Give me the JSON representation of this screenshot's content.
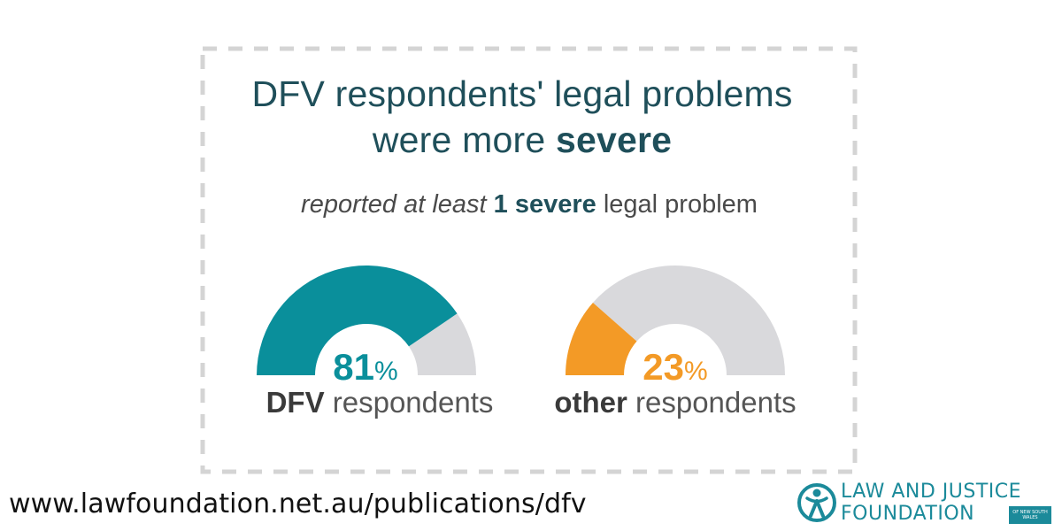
{
  "title": {
    "line1": "DFV respondents' legal problems",
    "line2_prefix": "were more ",
    "line2_bold": "severe"
  },
  "subtitle": {
    "prefix": "reported at least ",
    "bold": "1 severe",
    "suffix": " legal problem"
  },
  "chart_data": {
    "type": "gauge",
    "title": "DFV respondents' legal problems were more severe",
    "subtitle": "reported at least 1 severe legal problem",
    "unit": "%",
    "range": [
      0,
      100
    ],
    "series": [
      {
        "name": "DFV respondents",
        "name_bold": "DFV",
        "name_rest": " respondents",
        "value": 81,
        "value_text": "81",
        "color": "#0a8f9b"
      },
      {
        "name": "other respondents",
        "name_bold": "other",
        "name_rest": " respondents",
        "value": 23,
        "value_text": "23",
        "color": "#f39a26"
      }
    ],
    "track_color": "#d9d9dc",
    "percent_sign": "%"
  },
  "footer": {
    "url": "www.lawfoundation.net.au/publications/dfv"
  },
  "logo": {
    "line1": "LAW AND JUSTICE",
    "line2": "FOUNDATION",
    "sub": "OF NEW SOUTH WALES",
    "icon": "person-ribbon-icon",
    "color": "#1b8a9a"
  },
  "colors": {
    "title": "#1f4f5a",
    "dashed_border": "#d4d4d4"
  }
}
